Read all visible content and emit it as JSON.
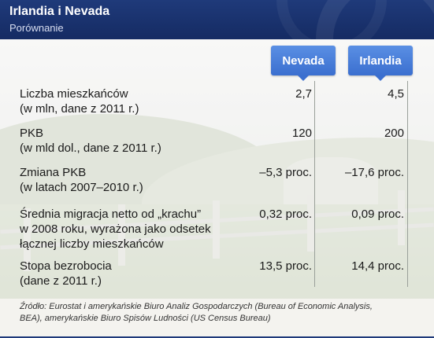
{
  "header": {
    "title": "Irlandia i Nevada",
    "subtitle": "Porównanie"
  },
  "columns": [
    "Nevada",
    "Irlandia"
  ],
  "rows": [
    {
      "label_lines": [
        "Liczba mieszkańców",
        "(w mln, dane z 2011 r.)"
      ],
      "nevada": "2,7",
      "irlandia": "4,5"
    },
    {
      "label_lines": [
        "PKB",
        "(w mld dol., dane z 2011 r.)"
      ],
      "nevada": "120",
      "irlandia": "200"
    },
    {
      "label_lines": [
        "Zmiana PKB",
        "(w latach 2007–2010 r.)"
      ],
      "nevada": "–5,3 proc.",
      "irlandia": "–17,6 proc."
    },
    {
      "label_lines": [
        "Średnia migracja netto od „krachu”",
        "w 2008 roku, wyrażona jako odsetek",
        "łącznej liczby mieszkańców"
      ],
      "nevada": "0,32 proc.",
      "irlandia": "0,09 proc."
    },
    {
      "label_lines": [
        "Stopa bezrobocia",
        "(dane z 2011 r.)"
      ],
      "nevada": "13,5 proc.",
      "irlandia": "14,4 proc."
    }
  ],
  "footer": {
    "line1": "Źródło: Eurostat i amerykańskie Biuro Analiz Gospodarczych (Bureau of Economic Analysis,",
    "line2": "BEA), amerykańskie Biuro Spisów Ludności (US Census Bureau)"
  },
  "colors": {
    "header_bg": "#1f3a7a",
    "tab_bg": "#3b6fcf"
  }
}
